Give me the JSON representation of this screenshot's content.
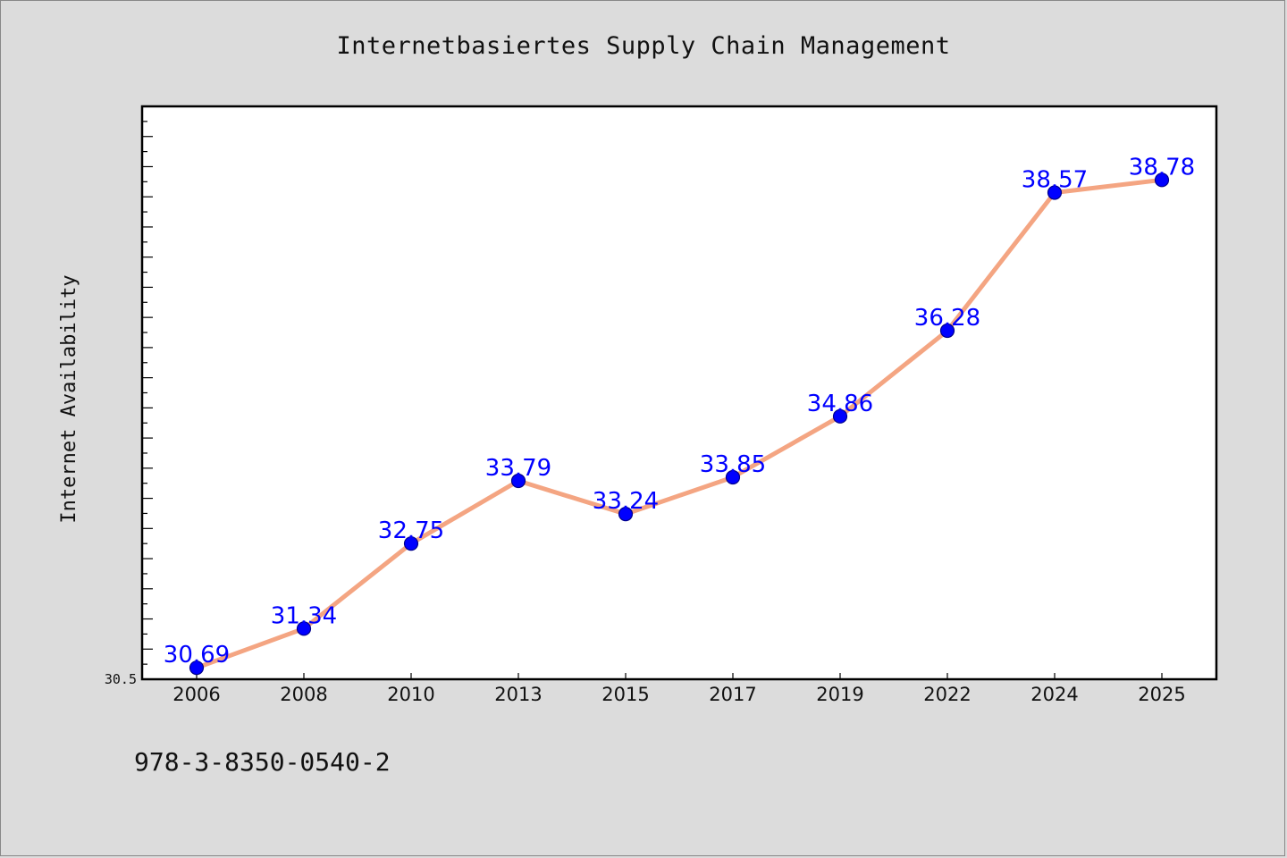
{
  "chart_data": {
    "type": "line",
    "title": "Internetbasiertes Supply Chain Management",
    "ylabel": "Internet Availability",
    "xlabel": "",
    "categories": [
      "2006",
      "2008",
      "2010",
      "2013",
      "2015",
      "2017",
      "2019",
      "2022",
      "2024",
      "2025"
    ],
    "series": [
      {
        "values": [
          30.69,
          31.34,
          32.75,
          33.79,
          33.24,
          33.85,
          34.86,
          36.28,
          38.57,
          38.78
        ],
        "labels": [
          "30.69",
          "31.34",
          "32.75",
          "33.79",
          "33.24",
          "33.85",
          "34.86",
          "36.28",
          "38.57",
          "38.78"
        ]
      }
    ],
    "ylim": [
      30.5,
      40.0
    ],
    "y_tick_label": "30.5",
    "grid": false,
    "line_color": "#f4a582",
    "marker_color": "#0000ff",
    "label_color": "#0000ff"
  },
  "footer": {
    "isbn": "978-3-8350-0540-2"
  }
}
